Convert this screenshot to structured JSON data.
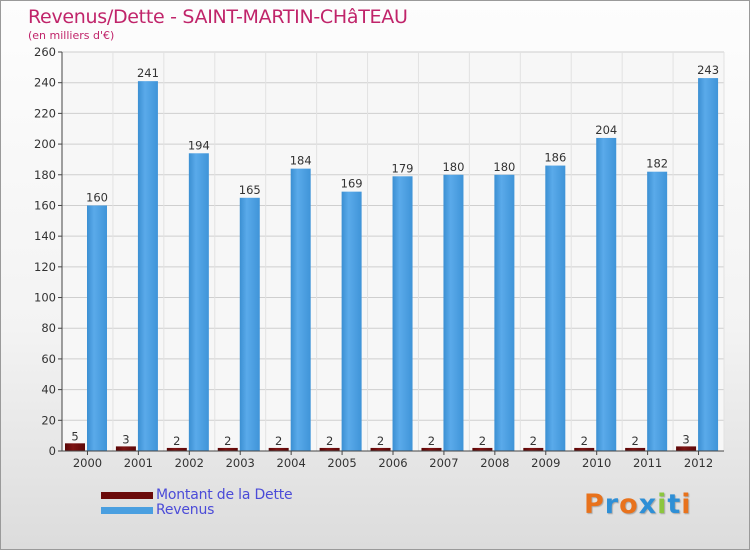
{
  "title": "Revenus/Dette - SAINT-MARTIN-CHâTEAU",
  "subtitle": "(en milliers d'€)",
  "colors": {
    "title": "#c0246a",
    "dette": "#6b0a0a",
    "revenus": "#4a9fe0",
    "legend_text": "#4b4bd8"
  },
  "legend": [
    {
      "label": "Montant de la Dette",
      "color": "#6b0a0a"
    },
    {
      "label": "Revenus",
      "color": "#4a9fe0"
    }
  ],
  "logo": {
    "letters": [
      "P",
      "r",
      "o",
      "x",
      "i",
      "t",
      "i"
    ],
    "colors": [
      "#e8721c",
      "#2e8fd6",
      "#e8721c",
      "#2e8fd6",
      "#8cc63f",
      "#2e8fd6",
      "#e8721c"
    ]
  },
  "chart_data": {
    "type": "bar",
    "title": "Revenus/Dette - SAINT-MARTIN-CHâTEAU",
    "subtitle": "(en milliers d'€)",
    "categories": [
      "2000",
      "2001",
      "2002",
      "2003",
      "2004",
      "2005",
      "2006",
      "2007",
      "2008",
      "2009",
      "2010",
      "2011",
      "2012"
    ],
    "series": [
      {
        "name": "Montant de la Dette",
        "values": [
          5,
          3,
          2,
          2,
          2,
          2,
          2,
          2,
          2,
          2,
          2,
          2,
          3
        ]
      },
      {
        "name": "Revenus",
        "values": [
          160,
          241,
          194,
          165,
          184,
          169,
          179,
          180,
          180,
          186,
          204,
          182,
          243
        ]
      }
    ],
    "ylim": [
      0,
      260
    ],
    "yticks": [
      0,
      20,
      40,
      60,
      80,
      100,
      120,
      140,
      160,
      180,
      200,
      220,
      240,
      260
    ],
    "grid": true,
    "legend_position": "bottom-left"
  }
}
